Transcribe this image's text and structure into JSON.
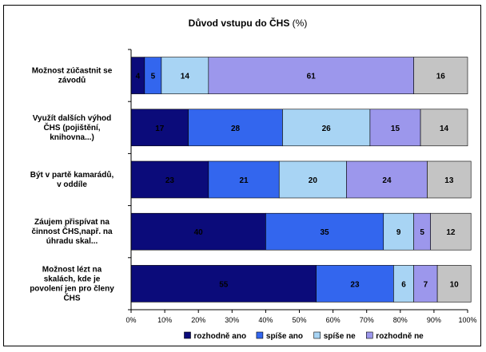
{
  "chart_data": {
    "type": "bar",
    "stacked": true,
    "orientation": "horizontal",
    "percent_stacked": true,
    "title": "Důvod vstupu do ČHS",
    "title_unit": "(%)",
    "categories": [
      "Možnost zúčastnit se závodů",
      "Využít dalších výhod ČHS (pojištění, knihovna...)",
      "Být v partě kamarádů, v oddíle",
      "Záujem přispívat na činnost ČHS,např. na úhradu skal...",
      "Možnost lézt na skalách, kde je povolení jen pro členy ČHS"
    ],
    "series": [
      {
        "name": "rozhodně ano",
        "color": "#0b0b7a",
        "text_color": "#000000",
        "values": [
          4,
          17,
          23,
          40,
          55
        ]
      },
      {
        "name": "spíše ano",
        "color": "#3366ee",
        "text_color": "#000000",
        "values": [
          5,
          28,
          21,
          35,
          23
        ]
      },
      {
        "name": "spíše ne",
        "color": "#a8d4f4",
        "text_color": "#000000",
        "values": [
          14,
          26,
          20,
          9,
          6
        ]
      },
      {
        "name": "rozhodně ne",
        "color": "#9c97ec",
        "text_color": "#000000",
        "values": [
          61,
          15,
          24,
          5,
          7
        ]
      },
      {
        "name": "",
        "color": "#c4c4c4",
        "text_color": "#000000",
        "values": [
          16,
          14,
          13,
          12,
          10
        ]
      }
    ],
    "xlim": [
      0,
      100
    ],
    "x_ticks": [
      "0%",
      "10%",
      "20%",
      "30%",
      "40%",
      "50%",
      "60%",
      "70%",
      "80%",
      "90%",
      "100%"
    ],
    "grid": false,
    "legend_position": "bottom"
  }
}
